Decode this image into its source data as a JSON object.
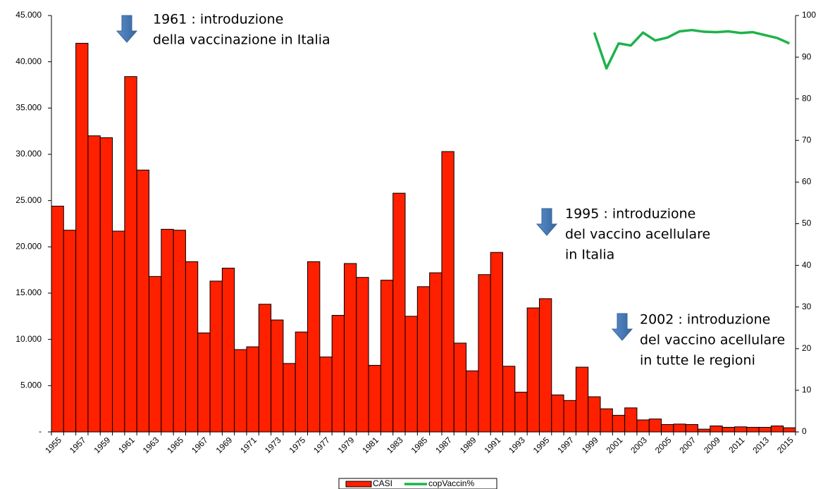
{
  "chart_data": {
    "type": "bar",
    "categories": [
      "1955",
      null,
      "1957",
      null,
      "1959",
      null,
      "1961",
      null,
      "1963",
      null,
      "1965",
      null,
      "1967",
      null,
      "1969",
      null,
      "1971",
      null,
      "1973",
      null,
      "1975",
      null,
      "1977",
      null,
      "1979",
      null,
      "1981",
      null,
      "1983",
      null,
      "1985",
      null,
      "1987",
      null,
      "1989",
      null,
      "1991",
      null,
      "1993",
      null,
      "1995",
      null,
      "1997",
      null,
      "1999",
      null,
      "2001",
      null,
      "2003",
      null,
      "2005",
      null,
      "2007",
      null,
      "2009",
      null,
      "2011",
      null,
      "2013",
      null,
      "2015"
    ],
    "series": [
      {
        "name": "CASI",
        "type": "bar",
        "color": "#ff2000",
        "values": [
          24400,
          21800,
          42000,
          32000,
          31800,
          21700,
          38400,
          28300,
          16800,
          21900,
          21800,
          18400,
          10700,
          16300,
          17700,
          8900,
          9200,
          13800,
          12100,
          7400,
          10800,
          18400,
          8100,
          12600,
          18200,
          16700,
          7200,
          16400,
          25800,
          12500,
          15700,
          17200,
          30300,
          9600,
          6600,
          17000,
          19400,
          7100,
          4300,
          13400,
          14400,
          4000,
          3400,
          7000,
          3800,
          2500,
          1800,
          2600,
          1300,
          1400,
          800,
          850,
          800,
          300,
          650,
          500,
          550,
          500,
          500,
          650,
          450
        ]
      },
      {
        "name": "copVaccin%",
        "type": "line",
        "axis": "y2",
        "color": "#1db34a",
        "values": [
          null,
          null,
          null,
          null,
          null,
          null,
          null,
          null,
          null,
          null,
          null,
          null,
          null,
          null,
          null,
          null,
          null,
          null,
          null,
          null,
          null,
          null,
          null,
          null,
          null,
          null,
          null,
          null,
          null,
          null,
          null,
          null,
          null,
          null,
          null,
          null,
          null,
          null,
          null,
          null,
          null,
          null,
          null,
          null,
          95.9,
          87.3,
          93.3,
          92.8,
          95.9,
          94.0,
          94.7,
          96.2,
          96.5,
          96.1,
          96.0,
          96.2,
          95.8,
          96.0,
          95.3,
          94.6,
          93.3
        ]
      }
    ],
    "ylim": [
      0,
      45000
    ],
    "yticks": [
      {
        "value": 0,
        "label": "-"
      },
      {
        "value": 5000,
        "label": "5.000"
      },
      {
        "value": 10000,
        "label": "10.000"
      },
      {
        "value": 15000,
        "label": "15.000"
      },
      {
        "value": 20000,
        "label": "20.000"
      },
      {
        "value": 25000,
        "label": "25.000"
      },
      {
        "value": 30000,
        "label": "30.000"
      },
      {
        "value": 35000,
        "label": "35.000"
      },
      {
        "value": 40000,
        "label": "40.000"
      },
      {
        "value": 45000,
        "label": "45.000"
      }
    ],
    "y2lim": [
      0,
      100
    ],
    "y2ticks": [
      0,
      10,
      20,
      30,
      40,
      50,
      60,
      70,
      80,
      90,
      100
    ],
    "legend": "bottom",
    "annotations": [
      {
        "lines": [
          "1961 : introduzione",
          "della vaccinazione in Italia"
        ]
      },
      {
        "lines": [
          "1995 : introduzione",
          "del vaccino acellulare",
          "in Italia"
        ]
      },
      {
        "lines": [
          "2002 : introduzione",
          "del vaccino acellulare",
          "in tutte le regioni"
        ]
      }
    ]
  }
}
